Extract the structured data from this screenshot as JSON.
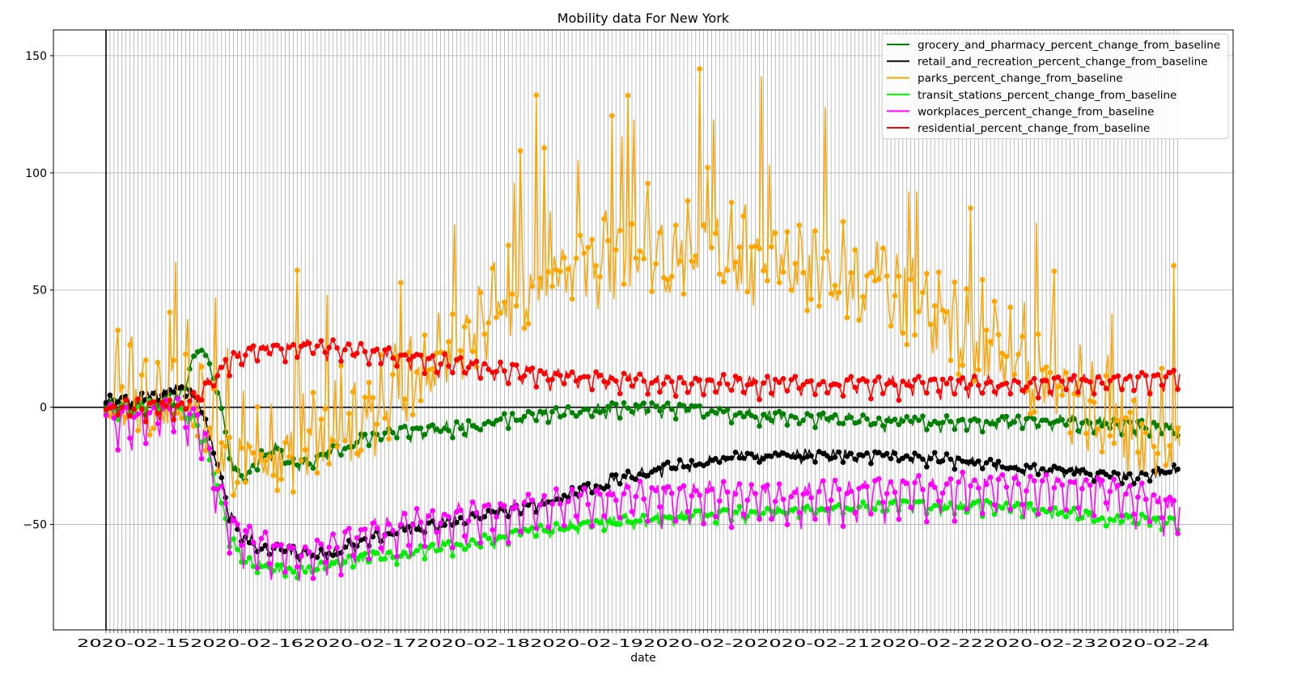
{
  "chart_data": {
    "type": "line",
    "title": "Mobility data For New York",
    "xlabel": "date",
    "ylabel": "",
    "ylim": [
      -95,
      161
    ],
    "yticks": [
      -50,
      0,
      50,
      100,
      150
    ],
    "ytick_labels": [
      "−50",
      "0",
      "50",
      "100",
      "150"
    ],
    "n_points": 540,
    "grid": true,
    "legend_position": "top-right",
    "reference_lines": [
      0
    ],
    "series": [
      {
        "name": "grocery_and_pharmacy_percent_change_from_baseline",
        "color": "#008000",
        "keypoints": [
          [
            0,
            2
          ],
          [
            10,
            2
          ],
          [
            20,
            1
          ],
          [
            30,
            3
          ],
          [
            38,
            6
          ],
          [
            44,
            20
          ],
          [
            48,
            27
          ],
          [
            52,
            18
          ],
          [
            56,
            8
          ],
          [
            60,
            -10
          ],
          [
            64,
            -25
          ],
          [
            70,
            -30
          ],
          [
            76,
            -22
          ],
          [
            85,
            -18
          ],
          [
            95,
            -25
          ],
          [
            105,
            -22
          ],
          [
            115,
            -18
          ],
          [
            125,
            -15
          ],
          [
            135,
            -12
          ],
          [
            145,
            -10
          ],
          [
            160,
            -10
          ],
          [
            180,
            -8
          ],
          [
            200,
            -5
          ],
          [
            220,
            -3
          ],
          [
            250,
            -1
          ],
          [
            280,
            0
          ],
          [
            320,
            -3
          ],
          [
            360,
            -5
          ],
          [
            400,
            -6
          ],
          [
            440,
            -6
          ],
          [
            480,
            -6
          ],
          [
            520,
            -8
          ],
          [
            540,
            -10
          ]
        ],
        "seed": 11,
        "weekly_amp": 3,
        "noise": 2,
        "markers": true
      },
      {
        "name": "retail_and_recreation_percent_change_from_baseline",
        "color": "#000000",
        "keypoints": [
          [
            0,
            3
          ],
          [
            12,
            3
          ],
          [
            24,
            5
          ],
          [
            36,
            8
          ],
          [
            44,
            5
          ],
          [
            50,
            -5
          ],
          [
            56,
            -25
          ],
          [
            62,
            -45
          ],
          [
            68,
            -55
          ],
          [
            80,
            -60
          ],
          [
            95,
            -62
          ],
          [
            110,
            -63
          ],
          [
            120,
            -60
          ],
          [
            135,
            -55
          ],
          [
            150,
            -52
          ],
          [
            165,
            -50
          ],
          [
            180,
            -47
          ],
          [
            200,
            -44
          ],
          [
            220,
            -40
          ],
          [
            240,
            -35
          ],
          [
            260,
            -30
          ],
          [
            280,
            -26
          ],
          [
            300,
            -23
          ],
          [
            320,
            -21
          ],
          [
            340,
            -20
          ],
          [
            360,
            -20
          ],
          [
            380,
            -20
          ],
          [
            400,
            -21
          ],
          [
            420,
            -22
          ],
          [
            440,
            -24
          ],
          [
            460,
            -26
          ],
          [
            480,
            -27
          ],
          [
            500,
            -28
          ],
          [
            520,
            -30
          ],
          [
            540,
            -26
          ]
        ],
        "seed": 22,
        "weekly_amp": 2,
        "noise": 2,
        "markers": true
      },
      {
        "name": "parks_percent_change_from_baseline",
        "color": "#FFA500",
        "keypoints": [
          [
            0,
            5
          ],
          [
            20,
            5
          ],
          [
            40,
            10
          ],
          [
            60,
            -20
          ],
          [
            80,
            -25
          ],
          [
            100,
            -15
          ],
          [
            120,
            -10
          ],
          [
            140,
            0
          ],
          [
            160,
            10
          ],
          [
            180,
            25
          ],
          [
            200,
            40
          ],
          [
            220,
            55
          ],
          [
            240,
            60
          ],
          [
            260,
            62
          ],
          [
            280,
            65
          ],
          [
            300,
            65
          ],
          [
            320,
            62
          ],
          [
            340,
            60
          ],
          [
            360,
            55
          ],
          [
            380,
            50
          ],
          [
            400,
            40
          ],
          [
            420,
            35
          ],
          [
            440,
            25
          ],
          [
            460,
            15
          ],
          [
            480,
            5
          ],
          [
            500,
            -5
          ],
          [
            520,
            -10
          ],
          [
            540,
            -18
          ]
        ],
        "seed": 33,
        "weekly_amp": 18,
        "noise": 14,
        "markers": true
      },
      {
        "name": "transit_stations_percent_change_from_baseline",
        "color": "#00EE00",
        "keypoints": [
          [
            0,
            -2
          ],
          [
            12,
            -1
          ],
          [
            24,
            1
          ],
          [
            36,
            0
          ],
          [
            44,
            -5
          ],
          [
            50,
            -15
          ],
          [
            56,
            -35
          ],
          [
            62,
            -55
          ],
          [
            70,
            -66
          ],
          [
            80,
            -68
          ],
          [
            95,
            -70
          ],
          [
            110,
            -68
          ],
          [
            120,
            -66
          ],
          [
            135,
            -64
          ],
          [
            150,
            -62
          ],
          [
            165,
            -60
          ],
          [
            180,
            -58
          ],
          [
            200,
            -55
          ],
          [
            220,
            -52
          ],
          [
            240,
            -50
          ],
          [
            260,
            -48
          ],
          [
            280,
            -47
          ],
          [
            300,
            -46
          ],
          [
            320,
            -45
          ],
          [
            340,
            -44
          ],
          [
            360,
            -44
          ],
          [
            380,
            -43
          ],
          [
            400,
            -42
          ],
          [
            420,
            -42
          ],
          [
            440,
            -42
          ],
          [
            460,
            -43
          ],
          [
            480,
            -45
          ],
          [
            500,
            -47
          ],
          [
            520,
            -48
          ],
          [
            540,
            -50
          ]
        ],
        "seed": 44,
        "weekly_amp": 3,
        "noise": 2,
        "markers": true
      },
      {
        "name": "workplaces_percent_change_from_baseline",
        "color": "#FF00FF",
        "keypoints": [
          [
            0,
            -2
          ],
          [
            12,
            -5
          ],
          [
            24,
            -3
          ],
          [
            36,
            0
          ],
          [
            44,
            -3
          ],
          [
            50,
            -15
          ],
          [
            56,
            -35
          ],
          [
            62,
            -48
          ],
          [
            70,
            -55
          ],
          [
            80,
            -58
          ],
          [
            95,
            -62
          ],
          [
            110,
            -60
          ],
          [
            120,
            -57
          ],
          [
            135,
            -53
          ],
          [
            150,
            -50
          ],
          [
            165,
            -48
          ],
          [
            180,
            -47
          ],
          [
            200,
            -45
          ],
          [
            220,
            -42
          ],
          [
            240,
            -40
          ],
          [
            260,
            -38
          ],
          [
            280,
            -37
          ],
          [
            300,
            -37
          ],
          [
            320,
            -38
          ],
          [
            340,
            -38
          ],
          [
            360,
            -37
          ],
          [
            380,
            -36
          ],
          [
            400,
            -35
          ],
          [
            420,
            -34
          ],
          [
            440,
            -33
          ],
          [
            460,
            -33
          ],
          [
            480,
            -34
          ],
          [
            500,
            -35
          ],
          [
            520,
            -38
          ],
          [
            540,
            -45
          ]
        ],
        "seed": 55,
        "weekly_amp": 12,
        "noise": 3,
        "markers": true
      },
      {
        "name": "residential_percent_change_from_baseline",
        "color": "#FF0000",
        "keypoints": [
          [
            0,
            0
          ],
          [
            12,
            1
          ],
          [
            24,
            0
          ],
          [
            36,
            1
          ],
          [
            44,
            3
          ],
          [
            50,
            8
          ],
          [
            56,
            15
          ],
          [
            62,
            20
          ],
          [
            70,
            23
          ],
          [
            80,
            25
          ],
          [
            95,
            26
          ],
          [
            110,
            26
          ],
          [
            120,
            25
          ],
          [
            135,
            23
          ],
          [
            150,
            22
          ],
          [
            165,
            20
          ],
          [
            180,
            18
          ],
          [
            200,
            16
          ],
          [
            220,
            14
          ],
          [
            240,
            13
          ],
          [
            260,
            12
          ],
          [
            280,
            11
          ],
          [
            300,
            11
          ],
          [
            320,
            10
          ],
          [
            340,
            10
          ],
          [
            360,
            10
          ],
          [
            380,
            10
          ],
          [
            400,
            10
          ],
          [
            420,
            10
          ],
          [
            440,
            10
          ],
          [
            460,
            10
          ],
          [
            480,
            11
          ],
          [
            500,
            11
          ],
          [
            520,
            12
          ],
          [
            540,
            14
          ]
        ],
        "seed": 66,
        "weekly_amp": 5,
        "noise": 2,
        "markers": true
      }
    ]
  }
}
